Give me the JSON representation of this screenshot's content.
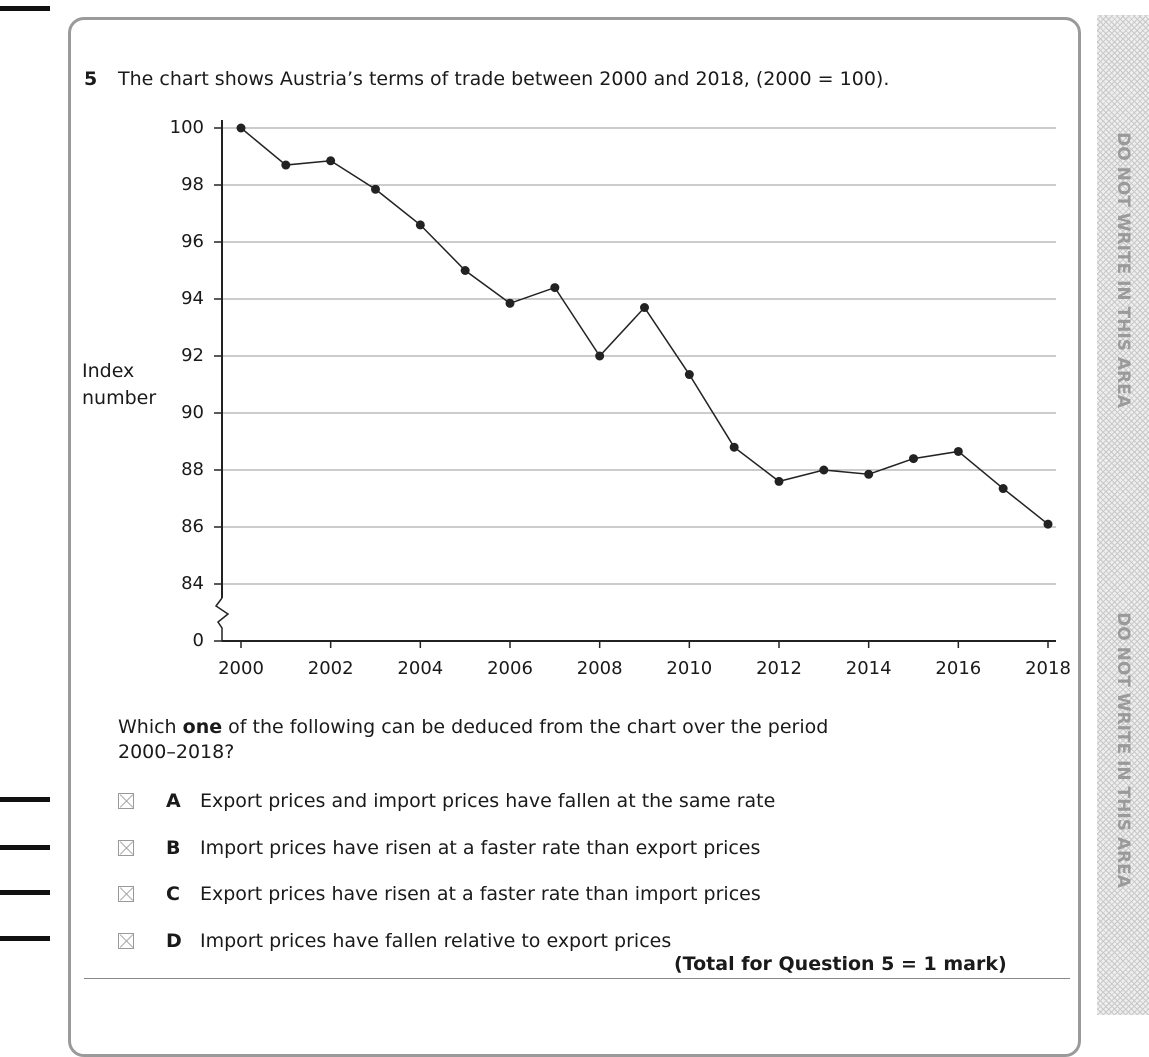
{
  "question_number": "5",
  "chart_data": {
    "type": "line",
    "title": "The chart shows Austria’s terms of trade between 2000 and 2018, (2000 = 100).",
    "y_label": "Index number",
    "x": [
      2000,
      2001,
      2002,
      2003,
      2004,
      2005,
      2006,
      2007,
      2008,
      2009,
      2010,
      2011,
      2012,
      2013,
      2014,
      2015,
      2016,
      2017,
      2018
    ],
    "series": [
      {
        "color": "#222222",
        "values": [
          100,
          98.7,
          98.85,
          97.85,
          96.6,
          95.0,
          93.85,
          94.4,
          92.0,
          93.7,
          91.35,
          88.8,
          87.6,
          88.0,
          87.85,
          88.4,
          88.65,
          87.35,
          86.1
        ]
      }
    ],
    "xlim": [
      2000,
      2018
    ],
    "xticks": [
      2000,
      2002,
      2004,
      2006,
      2008,
      2010,
      2012,
      2014,
      2016,
      2018
    ],
    "ylim": [
      0,
      100
    ],
    "axis_break": [
      0,
      84
    ],
    "yticks": [
      0,
      84,
      86,
      88,
      90,
      92,
      94,
      96,
      98,
      100
    ],
    "grid": true
  },
  "prompt": {
    "before": "Which",
    "bold": "one",
    "after": "of the following can be deduced from the chart over the period 2000–2018?"
  },
  "options": [
    {
      "letter": "A",
      "text": "Export prices and import prices have fallen at the same rate"
    },
    {
      "letter": "B",
      "text": "Import prices have risen at a faster rate than export prices"
    },
    {
      "letter": "C",
      "text": "Export prices have risen at a faster rate than import prices"
    },
    {
      "letter": "D",
      "text": "Import prices have fallen relative to export prices"
    }
  ],
  "total": "(Total for Question 5 = 1 mark)",
  "margin_text": "DO NOT WRITE IN THIS AREA"
}
